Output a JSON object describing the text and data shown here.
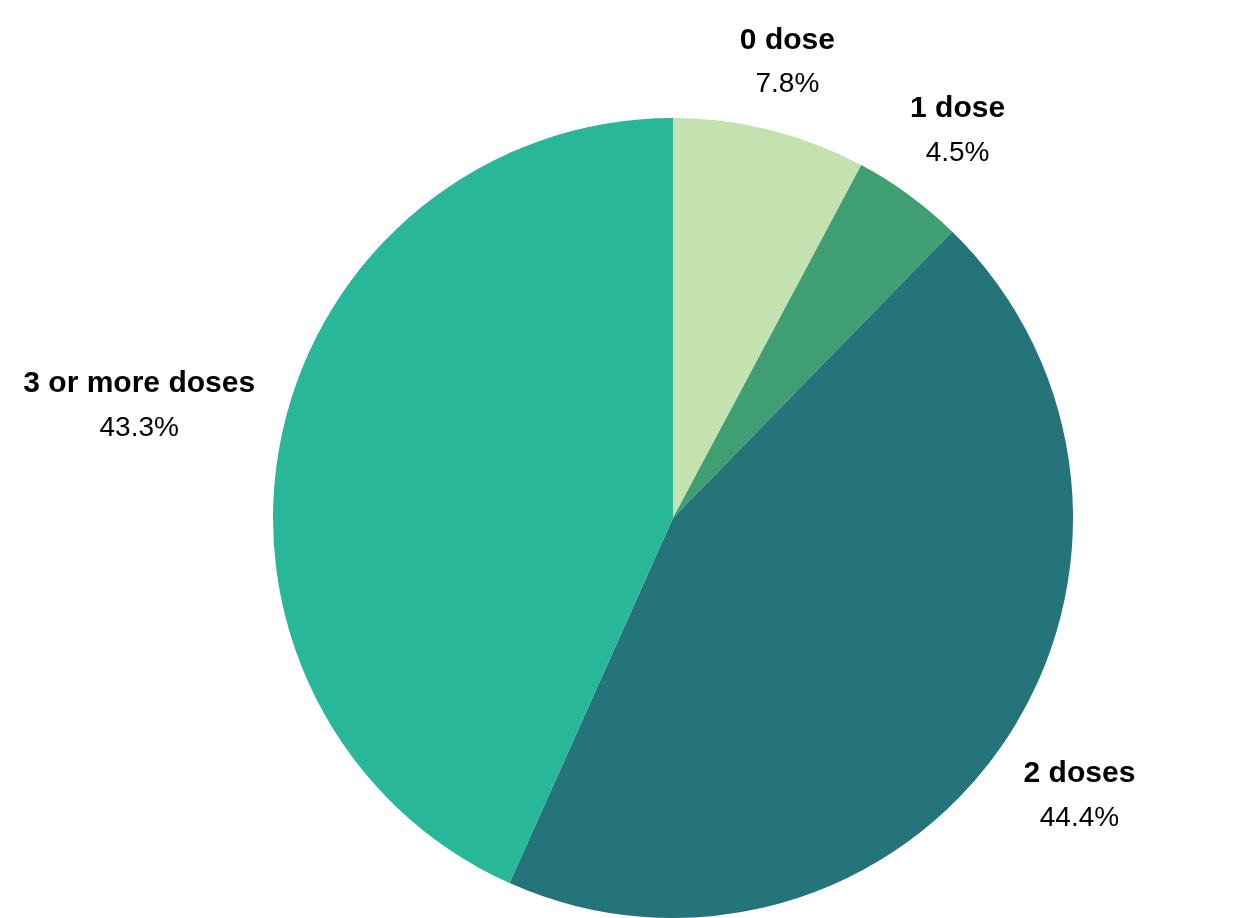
{
  "chart_data": {
    "type": "pie",
    "categories": [
      "0 dose",
      "1 dose",
      "2 doses",
      "3 or more doses"
    ],
    "values": [
      7.8,
      4.5,
      44.4,
      43.3
    ],
    "value_labels": [
      "7.8%",
      "4.5%",
      "44.4%",
      "43.3%"
    ],
    "colors": [
      "#c4e1b0",
      "#3f9e72",
      "#247479",
      "#28b899"
    ],
    "legend": false
  }
}
